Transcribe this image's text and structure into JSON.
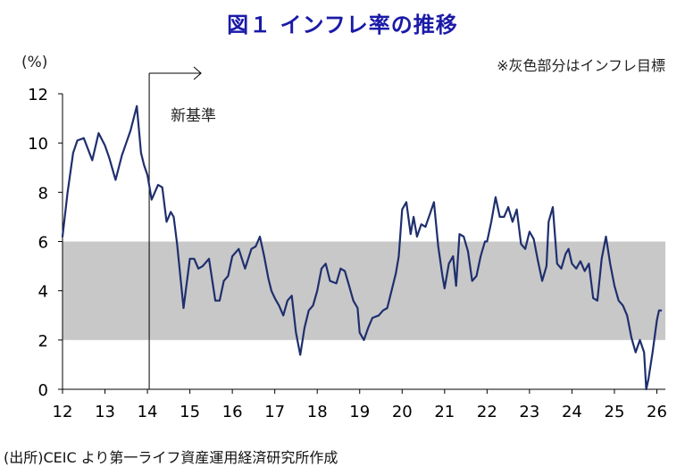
{
  "colors": {
    "title": "#1a1aa8",
    "line": "#1f2f6e",
    "band": "#c8c8c8",
    "text": "#222222"
  },
  "header": {
    "title": "図１ インフレ率の推移",
    "unit": "(%)",
    "note": "※灰色部分はインフレ目標"
  },
  "footer": {
    "source": "(出所)CEIC より第一ライフ資産運用経済研究所作成"
  },
  "chart_data": {
    "type": "line",
    "title": "図１ インフレ率の推移",
    "ylabel": "(%)",
    "xlabel": "",
    "ylim": [
      0,
      12
    ],
    "xlim": [
      2012.0,
      2026.2
    ],
    "y_ticks": [
      "0",
      "2",
      "4",
      "6",
      "8",
      "10",
      "12"
    ],
    "x_ticks": [
      "12",
      "13",
      "14",
      "15",
      "16",
      "17",
      "18",
      "19",
      "20",
      "21",
      "22",
      "23",
      "24",
      "25",
      "26"
    ],
    "target_band": {
      "low": 2,
      "high": 6,
      "label": "※灰色部分はインフレ目標"
    },
    "annotation": {
      "text": "新基準",
      "x": 2014.0
    },
    "series": [
      {
        "name": "インフレ率",
        "x": [
          2012.0,
          2012.12,
          2012.25,
          2012.35,
          2012.5,
          2012.7,
          2012.85,
          2013.0,
          2013.1,
          2013.25,
          2013.4,
          2013.5,
          2013.6,
          2013.75,
          2013.85,
          2013.92,
          2014.0,
          2014.1,
          2014.25,
          2014.35,
          2014.45,
          2014.55,
          2014.62,
          2014.7,
          2014.85,
          2015.0,
          2015.1,
          2015.2,
          2015.3,
          2015.45,
          2015.6,
          2015.7,
          2015.8,
          2015.9,
          2016.0,
          2016.15,
          2016.3,
          2016.45,
          2016.55,
          2016.65,
          2016.75,
          2016.85,
          2016.92,
          2017.0,
          2017.1,
          2017.2,
          2017.3,
          2017.4,
          2017.5,
          2017.6,
          2017.7,
          2017.8,
          2017.9,
          2018.0,
          2018.1,
          2018.2,
          2018.3,
          2018.45,
          2018.55,
          2018.65,
          2018.75,
          2018.85,
          2018.95,
          2019.0,
          2019.1,
          2019.2,
          2019.3,
          2019.45,
          2019.55,
          2019.65,
          2019.75,
          2019.85,
          2019.92,
          2020.0,
          2020.1,
          2020.2,
          2020.27,
          2020.35,
          2020.45,
          2020.55,
          2020.65,
          2020.75,
          2020.85,
          2020.95,
          2021.0,
          2021.1,
          2021.2,
          2021.27,
          2021.35,
          2021.45,
          2021.55,
          2021.65,
          2021.75,
          2021.85,
          2021.95,
          2022.0,
          2022.1,
          2022.2,
          2022.3,
          2022.4,
          2022.5,
          2022.6,
          2022.7,
          2022.8,
          2022.9,
          2023.0,
          2023.1,
          2023.2,
          2023.3,
          2023.4,
          2023.45,
          2023.55,
          2023.65,
          2023.75,
          2023.85,
          2023.92,
          2024.0,
          2024.1,
          2024.2,
          2024.3,
          2024.4,
          2024.5,
          2024.6,
          2024.7,
          2024.8,
          2024.9,
          2025.0,
          2025.1,
          2025.2,
          2025.3,
          2025.4,
          2025.5,
          2025.6,
          2025.7,
          2025.75,
          2025.8,
          2025.9,
          2026.0,
          2026.05,
          2026.1
        ],
        "values": [
          6.2,
          8.0,
          9.6,
          10.1,
          10.2,
          9.3,
          10.4,
          9.9,
          9.4,
          8.5,
          9.5,
          10.0,
          10.5,
          11.5,
          9.6,
          9.1,
          8.7,
          7.7,
          8.3,
          8.2,
          6.8,
          7.2,
          7.0,
          5.9,
          3.3,
          5.3,
          5.3,
          4.9,
          5.0,
          5.3,
          3.6,
          3.6,
          4.4,
          4.6,
          5.4,
          5.7,
          4.9,
          5.7,
          5.8,
          6.2,
          5.4,
          4.5,
          4.0,
          3.7,
          3.4,
          3.0,
          3.6,
          3.8,
          2.3,
          1.4,
          2.5,
          3.2,
          3.4,
          4.0,
          4.9,
          5.1,
          4.4,
          4.3,
          4.9,
          4.8,
          4.2,
          3.6,
          3.3,
          2.3,
          2.0,
          2.5,
          2.9,
          3.0,
          3.2,
          3.3,
          4.0,
          4.7,
          5.4,
          7.3,
          7.6,
          6.3,
          7.0,
          6.2,
          6.7,
          6.6,
          7.1,
          7.6,
          5.8,
          4.6,
          4.1,
          5.1,
          5.4,
          4.2,
          6.3,
          6.2,
          5.6,
          4.4,
          4.6,
          5.4,
          6.0,
          6.0,
          6.8,
          7.8,
          7.0,
          7.0,
          7.4,
          6.8,
          7.3,
          5.9,
          5.7,
          6.4,
          6.1,
          5.2,
          4.4,
          5.0,
          6.8,
          7.4,
          5.1,
          4.9,
          5.5,
          5.7,
          5.1,
          4.9,
          5.2,
          4.8,
          5.1,
          3.7,
          3.6,
          5.3,
          6.2,
          5.1,
          4.2,
          3.6,
          3.4,
          3.0,
          2.1,
          1.5,
          2.0,
          1.5,
          0.0,
          0.4,
          1.5,
          2.8,
          3.2,
          3.2
        ]
      }
    ]
  }
}
